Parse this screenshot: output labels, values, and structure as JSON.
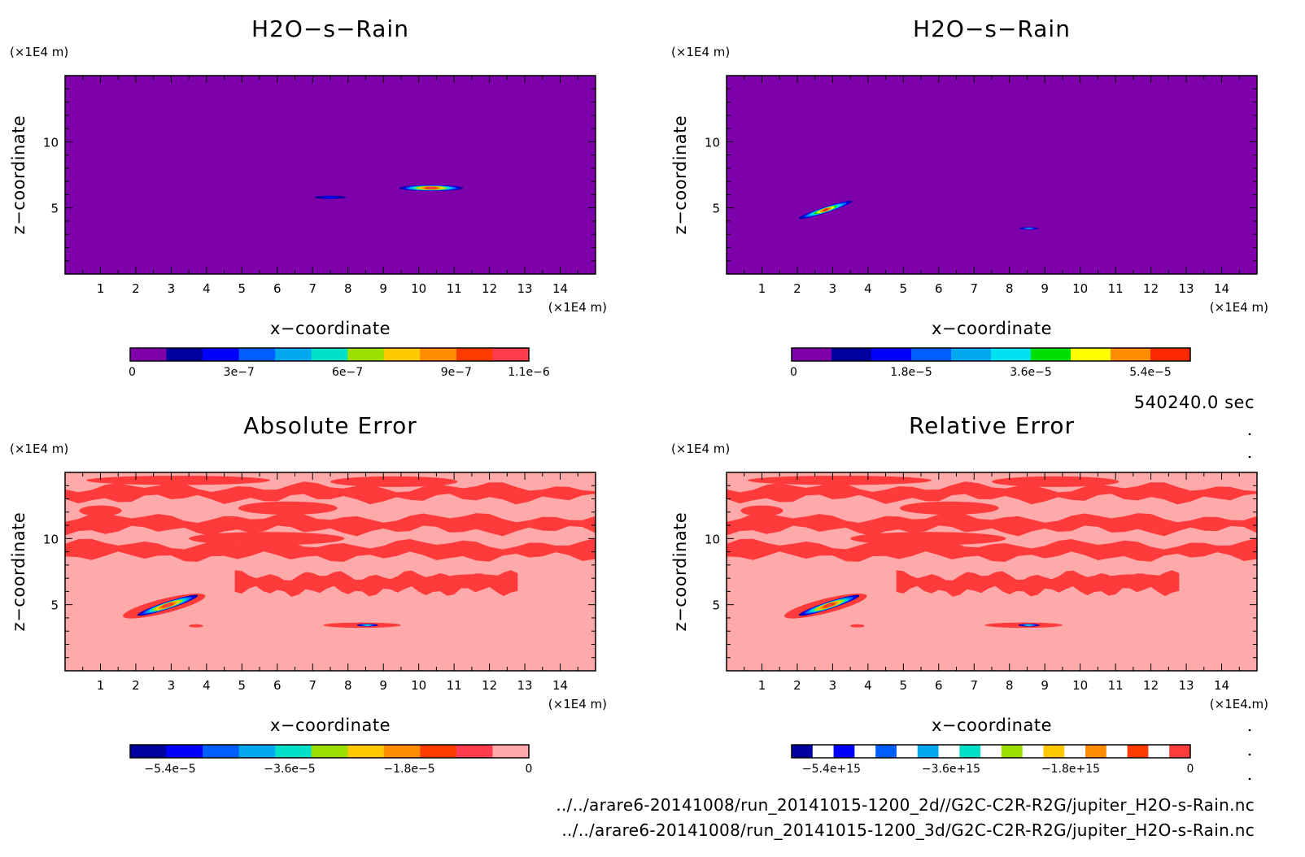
{
  "time_label": "540240.0 sec",
  "files": [
    "../../arare6-20141008/run_20141015-1200_2d//G2C-C2R-R2G/jupiter_H2O-s-Rain.nc",
    "../../arare6-20141008/run_20141015-1200_3d/G2C-C2R-R2G/jupiter_H2O-s-Rain.nc"
  ],
  "colors": {
    "background_purple": "#7d00aa",
    "error_background": "#ffaaaa",
    "error_red": "#ff3a3a"
  },
  "chart_data": [
    {
      "type": "heatmap",
      "title": "H2O−s−Rain",
      "xlabel": "x−coordinate",
      "ylabel": "z−coordinate",
      "x_unit": "(×1E4 m)",
      "y_unit": "(×1E4 m)",
      "xlim": [
        0,
        15
      ],
      "ylim": [
        0,
        15
      ],
      "xticks": [
        "1",
        "2",
        "3",
        "4",
        "5",
        "6",
        "7",
        "8",
        "9",
        "10",
        "11",
        "12",
        "13",
        "14"
      ],
      "yticks": [
        "5",
        "10"
      ],
      "background": "#7d00aa",
      "features": [
        {
          "x": 7.5,
          "z": 5.8,
          "dx": 0.45,
          "dz": 0.12,
          "peak": 0.2
        },
        {
          "x": 10.35,
          "z": 6.5,
          "dx": 0.9,
          "dz": 0.22,
          "peak": 1.0
        }
      ],
      "colorbar": {
        "colors": [
          "#7d00aa",
          "#0000a0",
          "#0000ff",
          "#0060ff",
          "#00a8f0",
          "#00e0c8",
          "#9ce000",
          "#ffc800",
          "#ff8c00",
          "#ff3c00",
          "#ff3c50"
        ],
        "ticks": [
          "0",
          "3e−7",
          "6e−7",
          "9e−7",
          "1.1e−6"
        ],
        "tick_pos": [
          0,
          0.273,
          0.545,
          0.818,
          1.0
        ]
      }
    },
    {
      "type": "heatmap",
      "title": "H2O−s−Rain",
      "xlabel": "x−coordinate",
      "ylabel": "z−coordinate",
      "x_unit": "(×1E4 m)",
      "y_unit": "(×1E4 m)",
      "xlim": [
        0,
        15
      ],
      "ylim": [
        0,
        15
      ],
      "xticks": [
        "1",
        "2",
        "3",
        "4",
        "5",
        "6",
        "7",
        "8",
        "9",
        "10",
        "11",
        "12",
        "13",
        "14"
      ],
      "yticks": [
        "5",
        "10"
      ],
      "background": "#7d00aa",
      "features": [
        {
          "x": 2.8,
          "z": 4.85,
          "dx": 0.8,
          "dz": 0.22,
          "peak": 1.0,
          "rot": -18
        },
        {
          "x": 8.55,
          "z": 3.45,
          "dx": 0.28,
          "dz": 0.09,
          "peak": 0.45
        }
      ],
      "colorbar": {
        "colors": [
          "#7d00aa",
          "#0000a0",
          "#0000ff",
          "#0060ff",
          "#00a8f0",
          "#00e0f0",
          "#00e000",
          "#ffff00",
          "#ff8c00",
          "#ff2800"
        ],
        "ticks": [
          "0",
          "1.8e−5",
          "3.6e−5",
          "5.4e−5"
        ],
        "tick_pos": [
          0,
          0.3,
          0.6,
          0.9
        ]
      }
    },
    {
      "type": "heatmap",
      "title": "Absolute Error",
      "xlabel": "x−coordinate",
      "ylabel": "z−coordinate",
      "x_unit": "(×1E4 m)",
      "y_unit": "(×1E4 m)",
      "xlim": [
        0,
        15
      ],
      "ylim": [
        0,
        15
      ],
      "xticks": [
        "1",
        "2",
        "3",
        "4",
        "5",
        "6",
        "7",
        "8",
        "9",
        "10",
        "11",
        "12",
        "13",
        "14"
      ],
      "yticks": [
        "5",
        "10"
      ],
      "background": "#ffaaaa",
      "bands": [
        {
          "z0": 13.0,
          "z1": 13.9
        },
        {
          "z0": 10.6,
          "z1": 11.6
        },
        {
          "z0": 8.6,
          "z1": 9.6
        },
        {
          "z0": 6.0,
          "z1": 7.2,
          "x0": 4.8,
          "x1": 12.8
        }
      ],
      "features": [
        {
          "x": 2.9,
          "z": 4.95,
          "dx": 0.9,
          "dz": 0.28,
          "peak": 1.0,
          "rot": -18
        },
        {
          "x": 8.55,
          "z": 3.45,
          "dx": 0.3,
          "dz": 0.1,
          "peak": 0.5
        }
      ],
      "colorbar": {
        "colors": [
          "#0000a0",
          "#0000ff",
          "#0060ff",
          "#00a8f0",
          "#00e0c8",
          "#9ce000",
          "#ffc800",
          "#ff8c00",
          "#ff3c00",
          "#ff3c50",
          "#ffaaaa"
        ],
        "ticks": [
          "−5.4e−5",
          "−3.6e−5",
          "−1.8e−5",
          "0"
        ],
        "tick_pos": [
          0.1,
          0.4,
          0.7,
          1.0
        ]
      }
    },
    {
      "type": "heatmap",
      "title": "Relative Error",
      "xlabel": "x−coordinate",
      "ylabel": "z−coordinate",
      "x_unit": "(×1E4 m)",
      "y_unit": "(×1E4 m)",
      "xlim": [
        0,
        15
      ],
      "ylim": [
        0,
        15
      ],
      "xticks": [
        "1",
        "2",
        "3",
        "4",
        "5",
        "6",
        "7",
        "8",
        "9",
        "10",
        "11",
        "12",
        "13",
        "14"
      ],
      "yticks": [
        "5",
        "10"
      ],
      "background": "#ffaaaa",
      "bands": [
        {
          "z0": 13.0,
          "z1": 13.9
        },
        {
          "z0": 10.6,
          "z1": 11.6
        },
        {
          "z0": 8.6,
          "z1": 9.6
        },
        {
          "z0": 6.0,
          "z1": 7.2,
          "x0": 4.8,
          "x1": 12.8
        }
      ],
      "features": [
        {
          "x": 2.9,
          "z": 4.95,
          "dx": 0.9,
          "dz": 0.28,
          "peak": 1.0,
          "rot": -18
        },
        {
          "x": 8.55,
          "z": 3.45,
          "dx": 0.3,
          "dz": 0.1,
          "peak": 0.5
        }
      ],
      "colorbar": {
        "colors": [
          "#0000a0",
          "#ffffff",
          "#0000ff",
          "#ffffff",
          "#0060ff",
          "#ffffff",
          "#00a8f0",
          "#ffffff",
          "#00e0c8",
          "#ffffff",
          "#9ce000",
          "#ffffff",
          "#ffc800",
          "#ffffff",
          "#ff8c00",
          "#ffffff",
          "#ff3c00",
          "#ffffff",
          "#ff3c3c"
        ],
        "ticks": [
          "−5.4e+15",
          "−3.6e+15",
          "−1.8e+15",
          "0"
        ],
        "tick_pos": [
          0.1,
          0.4,
          0.7,
          1.0
        ]
      }
    }
  ]
}
